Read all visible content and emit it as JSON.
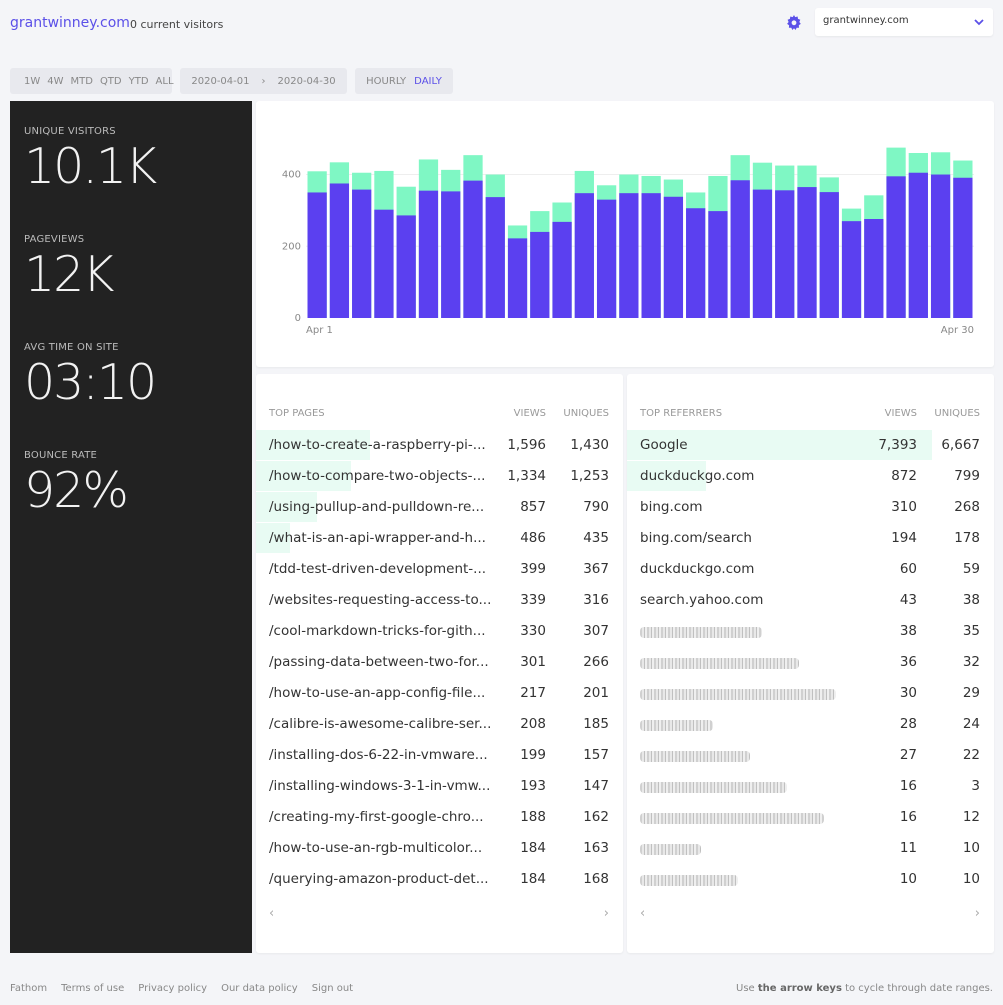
{
  "header": {
    "site_title": "grantwinney.com",
    "current_visitors": "0 current visitors",
    "site_select_value": "grantwinney.com"
  },
  "filters": {
    "ranges": [
      "1W",
      "4W",
      "MTD",
      "QTD",
      "YTD",
      "ALL"
    ],
    "date_from": "2020-04-01",
    "date_sep": "›",
    "date_to": "2020-04-30",
    "granularity": [
      "HOURLY",
      "DAILY"
    ],
    "active_granularity": "DAILY"
  },
  "stats": {
    "unique_visitors_label": "UNIQUE VISITORS",
    "unique_visitors": "10.1K",
    "pageviews_label": "PAGEVIEWS",
    "pageviews": "12K",
    "avg_time_label": "AVG TIME ON SITE",
    "avg_time": "03:10",
    "bounce_label": "BOUNCE RATE",
    "bounce": "92%"
  },
  "chart_data": {
    "type": "bar",
    "x_start_label": "Apr 1",
    "x_end_label": "Apr 30",
    "ylim": [
      0,
      460
    ],
    "yticks": [
      0,
      200,
      400
    ],
    "grid": true,
    "colors": {
      "visitors": "#5b40f0",
      "pageviews": "#7ff7c4"
    },
    "series": [
      {
        "values": [
          350,
          375,
          358,
          302,
          286,
          355,
          353,
          383,
          337,
          222,
          240,
          268,
          348,
          330,
          348,
          348,
          338,
          306,
          298,
          384,
          358,
          356,
          365,
          351,
          270,
          276,
          395,
          405,
          400,
          391
        ]
      },
      {
        "values": [
          409,
          434,
          405,
          410,
          366,
          442,
          413,
          454,
          400,
          258,
          298,
          322,
          410,
          370,
          400,
          396,
          386,
          350,
          396,
          454,
          433,
          425,
          425,
          392,
          305,
          342,
          475,
          460,
          462,
          439
        ]
      }
    ]
  },
  "top_pages": {
    "title": "TOP PAGES",
    "col_views": "VIEWS",
    "col_uniques": "UNIQUES",
    "rows": [
      {
        "name": "/how-to-create-a-raspberry-pi-...",
        "views": "1,596",
        "uniques": "1,430",
        "share": 0.31
      },
      {
        "name": "/how-to-compare-two-objects-...",
        "views": "1,334",
        "uniques": "1,253",
        "share": 0.26
      },
      {
        "name": "/using-pullup-and-pulldown-re...",
        "views": "857",
        "uniques": "790",
        "share": 0.165
      },
      {
        "name": "/what-is-an-api-wrapper-and-h...",
        "views": "486",
        "uniques": "435",
        "share": 0.094
      },
      {
        "name": "/tdd-test-driven-development-...",
        "views": "399",
        "uniques": "367",
        "share": 0
      },
      {
        "name": "/websites-requesting-access-to...",
        "views": "339",
        "uniques": "316",
        "share": 0
      },
      {
        "name": "/cool-markdown-tricks-for-gith...",
        "views": "330",
        "uniques": "307",
        "share": 0
      },
      {
        "name": "/passing-data-between-two-for...",
        "views": "301",
        "uniques": "266",
        "share": 0
      },
      {
        "name": "/how-to-use-an-app-config-file...",
        "views": "217",
        "uniques": "201",
        "share": 0
      },
      {
        "name": "/calibre-is-awesome-calibre-ser...",
        "views": "208",
        "uniques": "185",
        "share": 0
      },
      {
        "name": "/installing-dos-6-22-in-vmware...",
        "views": "199",
        "uniques": "157",
        "share": 0
      },
      {
        "name": "/installing-windows-3-1-in-vmw...",
        "views": "193",
        "uniques": "147",
        "share": 0
      },
      {
        "name": "/creating-my-first-google-chro...",
        "views": "188",
        "uniques": "162",
        "share": 0
      },
      {
        "name": "/how-to-use-an-rgb-multicolor...",
        "views": "184",
        "uniques": "163",
        "share": 0
      },
      {
        "name": "/querying-amazon-product-det...",
        "views": "184",
        "uniques": "168",
        "share": 0
      }
    ],
    "prev": "‹",
    "next": "›"
  },
  "top_referrers": {
    "title": "TOP REFERRERS",
    "col_views": "VIEWS",
    "col_uniques": "UNIQUES",
    "rows": [
      {
        "name": "Google",
        "views": "7,393",
        "uniques": "6,667",
        "share": 0.83
      },
      {
        "name": "duckduckgo.com",
        "views": "872",
        "uniques": "799",
        "share": 0.215
      },
      {
        "name": "bing.com",
        "views": "310",
        "uniques": "268",
        "share": 0
      },
      {
        "name": "bing.com/search",
        "views": "194",
        "uniques": "178",
        "share": 0
      },
      {
        "name": "duckduckgo.com",
        "views": "60",
        "uniques": "59",
        "share": 0
      },
      {
        "name": "search.yahoo.com",
        "views": "43",
        "uniques": "38",
        "share": 0
      },
      {
        "name": "",
        "blurred": true,
        "views": "38",
        "uniques": "35",
        "share": 0
      },
      {
        "name": "",
        "blurred": true,
        "views": "36",
        "uniques": "32",
        "share": 0
      },
      {
        "name": "",
        "blurred": true,
        "views": "30",
        "uniques": "29",
        "share": 0
      },
      {
        "name": "",
        "blurred": true,
        "views": "28",
        "uniques": "24",
        "share": 0
      },
      {
        "name": "",
        "blurred": true,
        "views": "27",
        "uniques": "22",
        "share": 0
      },
      {
        "name": "",
        "blurred": true,
        "views": "16",
        "uniques": "3",
        "share": 0
      },
      {
        "name": "",
        "blurred": true,
        "views": "16",
        "uniques": "12",
        "share": 0
      },
      {
        "name": "",
        "blurred": true,
        "views": "11",
        "uniques": "10",
        "share": 0
      },
      {
        "name": "",
        "blurred": true,
        "views": "10",
        "uniques": "10",
        "share": 0
      }
    ],
    "prev": "‹",
    "next": "›"
  },
  "footer": {
    "links": [
      "Fathom",
      "Terms of use",
      "Privacy policy",
      "Our data policy",
      "Sign out"
    ],
    "hint_pre": "Use ",
    "hint_bold": "the arrow keys",
    "hint_post": " to cycle through date ranges."
  }
}
